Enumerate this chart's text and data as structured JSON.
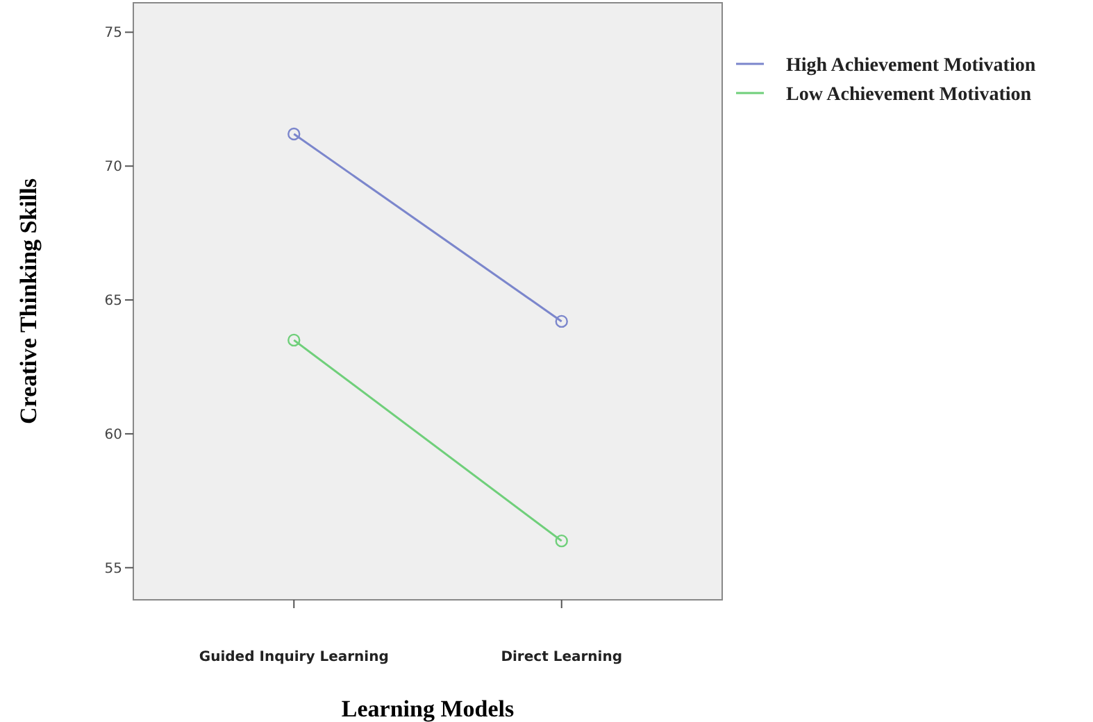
{
  "chart_data": {
    "type": "line",
    "xlabel": "Learning Models",
    "ylabel": "Creative Thinking Skills",
    "categories": [
      "Guided Inquiry Learning",
      "Direct Learning"
    ],
    "series": [
      {
        "name": "High Achievement Motivation",
        "color": "#7b86cc",
        "values": [
          71.2,
          64.2
        ]
      },
      {
        "name": "Low Achievement Motivation",
        "color": "#6fcf7a",
        "values": [
          63.5,
          56.0
        ]
      }
    ],
    "ylim": [
      53.8,
      76.1
    ],
    "yticks": [
      55,
      60,
      65,
      70,
      75
    ],
    "grid": false,
    "legend": "top right",
    "marker": "circle",
    "line_style": "solid"
  }
}
